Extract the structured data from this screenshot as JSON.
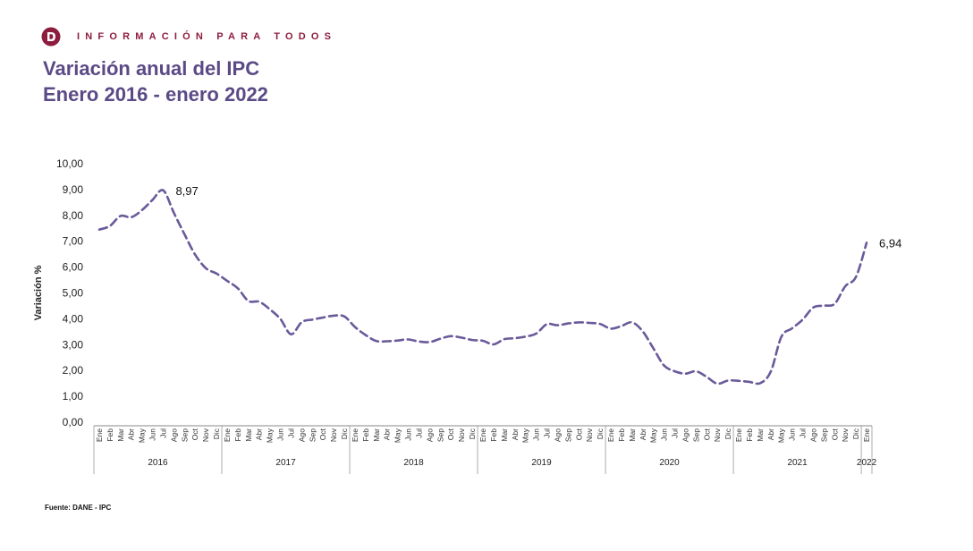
{
  "brand": {
    "tagline": "INFORMACIÓN PARA TODOS",
    "logo_icon": "dane-logo-icon",
    "color": "#8d1d3f"
  },
  "header": {
    "title_line1": "Variación anual del IPC",
    "title_line2": "Enero 2016 - enero 2022"
  },
  "footer": {
    "source": "Fuente: DANE - IPC"
  },
  "chart_data": {
    "type": "line",
    "title": "Variación anual del IPC",
    "subtitle": "Enero 2016 - enero 2022",
    "ylabel": "Variación %",
    "xlabel": "",
    "ylim": [
      0,
      10
    ],
    "yticks": [
      "0,00",
      "1,00",
      "2,00",
      "3,00",
      "4,00",
      "5,00",
      "6,00",
      "7,00",
      "8,00",
      "9,00",
      "10,00"
    ],
    "grid": false,
    "line_style": "dashed",
    "line_color": "#6a5a9a",
    "groups": [
      {
        "label": "2016",
        "count": 12
      },
      {
        "label": "2017",
        "count": 12
      },
      {
        "label": "2018",
        "count": 12
      },
      {
        "label": "2019",
        "count": 12
      },
      {
        "label": "2020",
        "count": 12
      },
      {
        "label": "2021",
        "count": 12
      },
      {
        "label": "2022",
        "count": 1
      }
    ],
    "categories": [
      "Ene",
      "Feb",
      "Mar",
      "Abr",
      "May",
      "Jun",
      "Jul",
      "Ago",
      "Sep",
      "Oct",
      "Nov",
      "Dic",
      "Ene",
      "Feb",
      "Mar",
      "Abr",
      "May",
      "Jun",
      "Jul",
      "Ago",
      "Sep",
      "Oct",
      "Nov",
      "Dic",
      "Ene",
      "Feb",
      "Mar",
      "Abr",
      "May",
      "Jun",
      "Jul",
      "Ago",
      "Sep",
      "Oct",
      "Nov",
      "Dic",
      "Ene",
      "Feb",
      "Mar",
      "Abr",
      "May",
      "Jun",
      "Jul",
      "Ago",
      "Sep",
      "Oct",
      "Nov",
      "Dic",
      "Ene",
      "Feb",
      "Mar",
      "Abr",
      "May",
      "Jun",
      "Jul",
      "Ago",
      "Sep",
      "Oct",
      "Nov",
      "Dic",
      "Ene",
      "Feb",
      "Mar",
      "Abr",
      "May",
      "Jun",
      "Jul",
      "Ago",
      "Sep",
      "Oct",
      "Nov",
      "Dic",
      "Ene"
    ],
    "values": [
      7.45,
      7.59,
      7.98,
      7.93,
      8.2,
      8.6,
      8.97,
      8.1,
      7.27,
      6.48,
      5.96,
      5.75,
      5.47,
      5.18,
      4.69,
      4.66,
      4.37,
      3.99,
      3.4,
      3.87,
      3.97,
      4.05,
      4.12,
      4.09,
      3.68,
      3.37,
      3.14,
      3.13,
      3.16,
      3.2,
      3.12,
      3.1,
      3.23,
      3.33,
      3.27,
      3.18,
      3.15,
      3.01,
      3.21,
      3.25,
      3.31,
      3.43,
      3.79,
      3.75,
      3.82,
      3.86,
      3.84,
      3.8,
      3.62,
      3.72,
      3.86,
      3.51,
      2.85,
      2.19,
      1.97,
      1.88,
      1.97,
      1.75,
      1.49,
      1.61,
      1.6,
      1.56,
      1.51,
      1.95,
      3.3,
      3.63,
      3.97,
      4.44,
      4.51,
      4.58,
      5.26,
      5.62,
      6.94
    ],
    "annotations": [
      {
        "index": 6,
        "text": "8,97"
      },
      {
        "index": 72,
        "text": "6,94"
      }
    ]
  }
}
